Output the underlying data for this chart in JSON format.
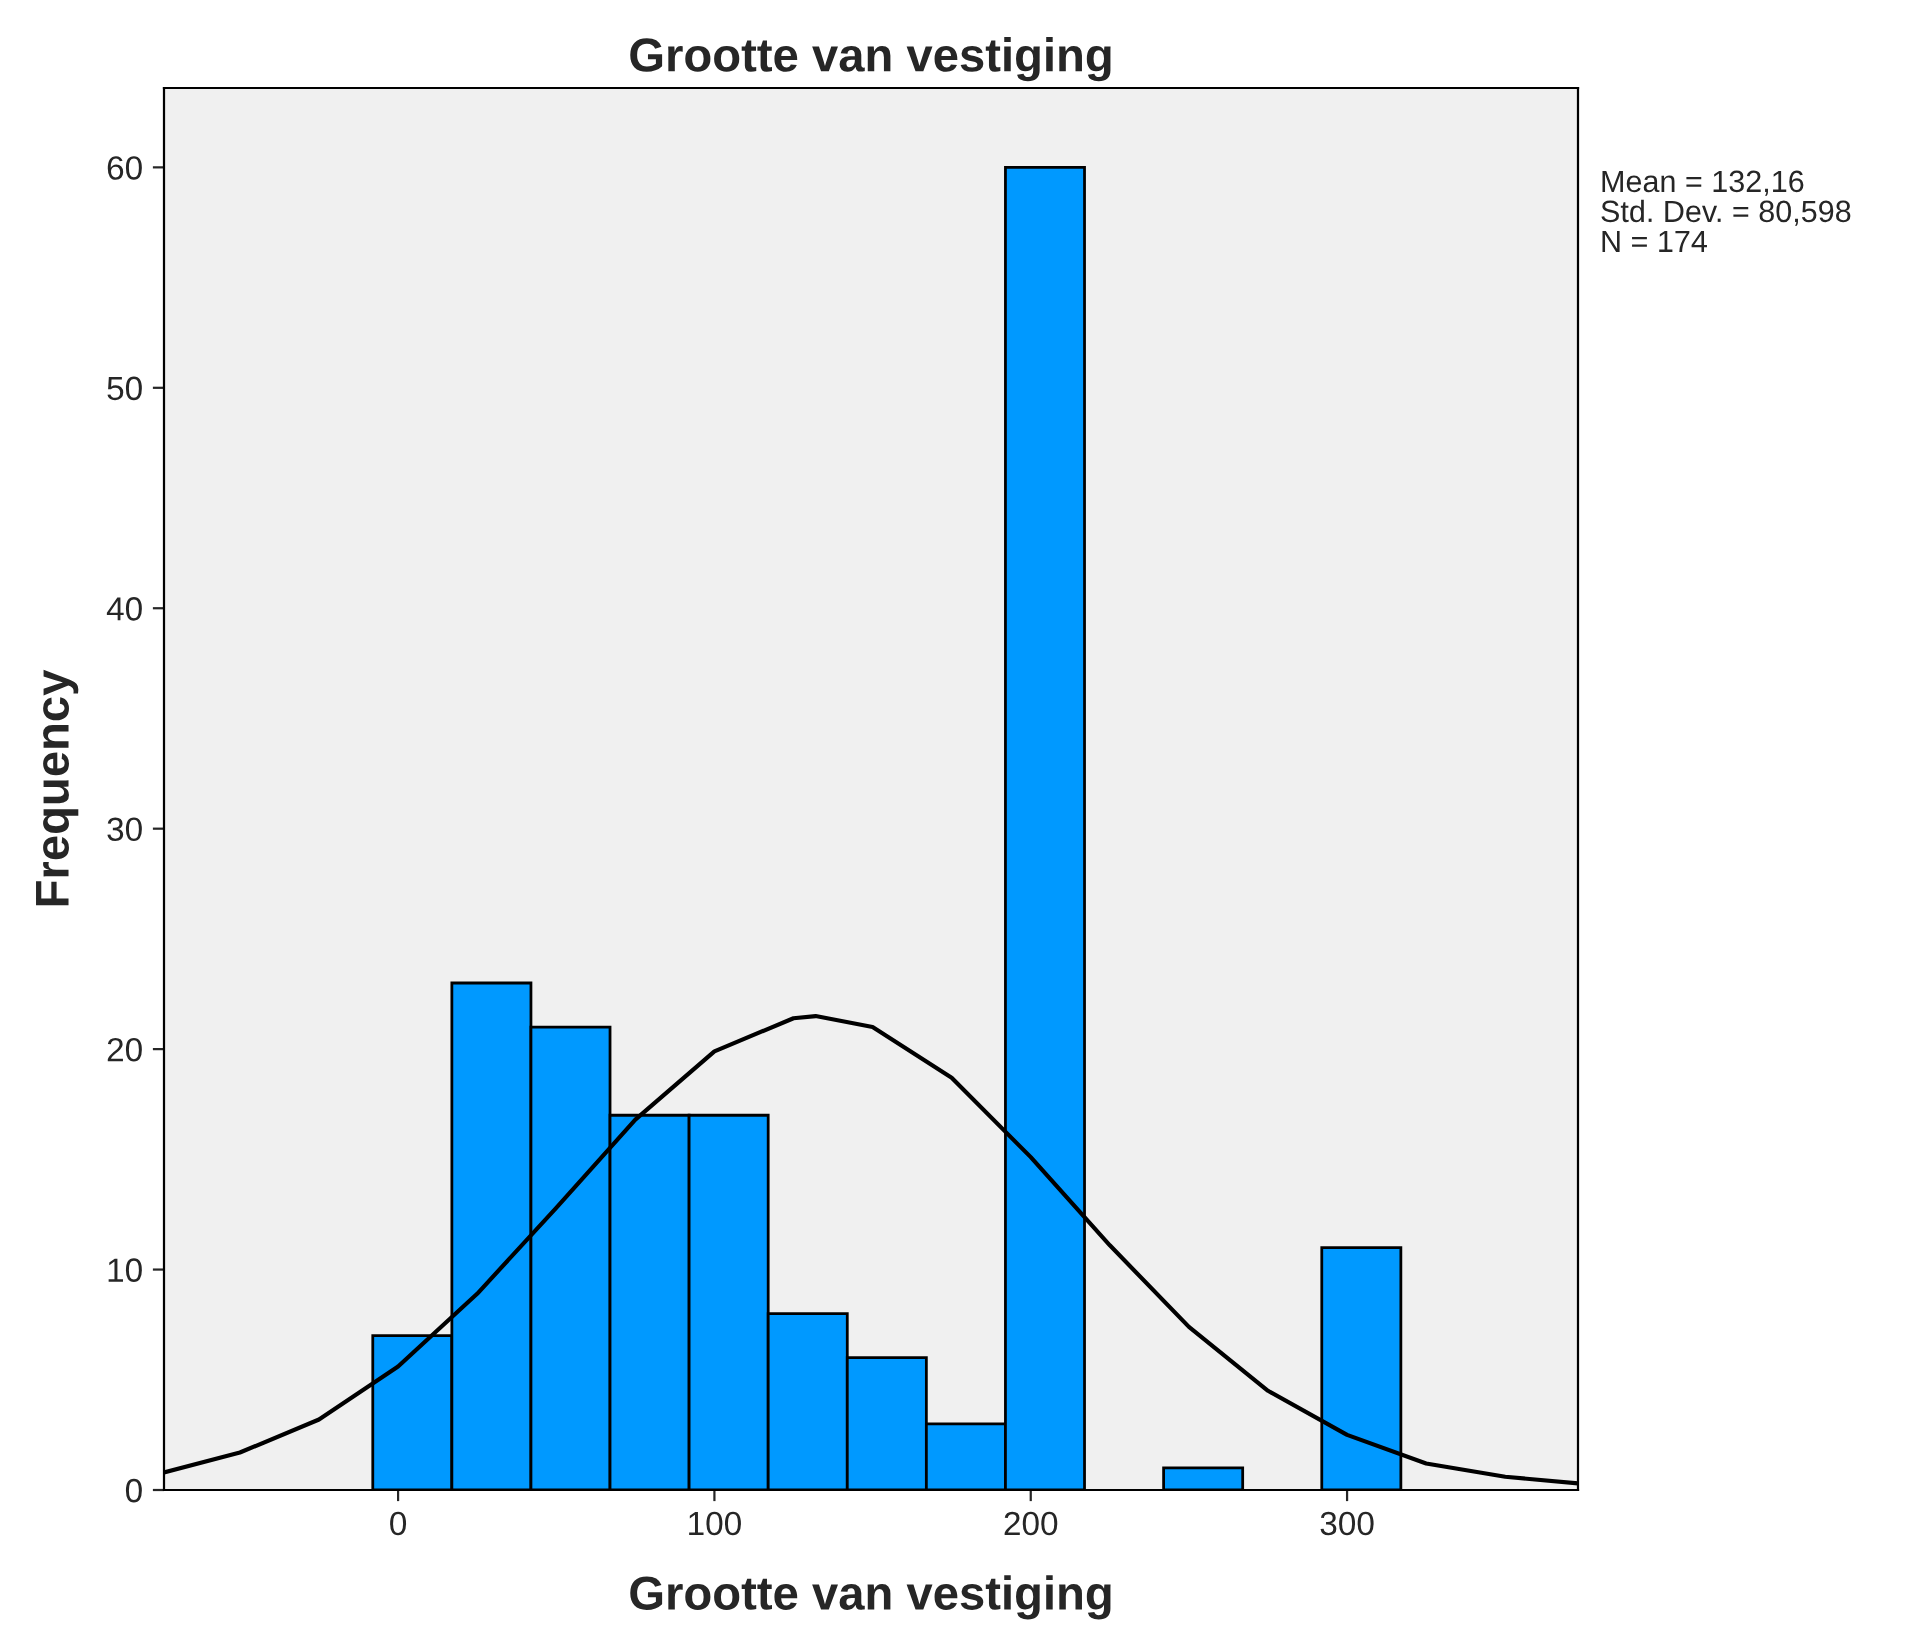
{
  "chart_data": {
    "type": "histogram",
    "title": "Grootte van vestiging",
    "xlabel": "Grootte van vestiging",
    "ylabel": "Frequency",
    "bins": [
      -8,
      17,
      42,
      67,
      92,
      117,
      142,
      167,
      192,
      217,
      242,
      267,
      292,
      317
    ],
    "values": [
      7,
      23,
      21,
      17,
      17,
      8,
      6,
      3,
      60,
      0,
      1,
      0,
      11
    ],
    "color": "#0099ff",
    "series": [
      {
        "type": "line",
        "color": "#000000",
        "x": [
          -74,
          -50,
          -25,
          0,
          25,
          50,
          75,
          100,
          125,
          132,
          150,
          175,
          200,
          225,
          250,
          275,
          300,
          325,
          350,
          373
        ],
        "values": [
          0.8,
          1.7,
          3.2,
          5.6,
          8.9,
          12.8,
          16.8,
          19.9,
          21.4,
          21.5,
          21.0,
          18.7,
          15.1,
          11.1,
          7.4,
          4.5,
          2.5,
          1.2,
          0.6,
          0.3
        ]
      }
    ],
    "xlim": [
      -74,
      373
    ],
    "ylim": [
      0,
      63.6
    ],
    "xticks": [
      0,
      100,
      200,
      300
    ],
    "yticks": [
      0,
      10,
      20,
      30,
      40,
      50,
      60
    ],
    "grid": false,
    "annotations": [
      "Mean = 132,16",
      "Std. Dev. = 80,598",
      "N = 174"
    ]
  }
}
